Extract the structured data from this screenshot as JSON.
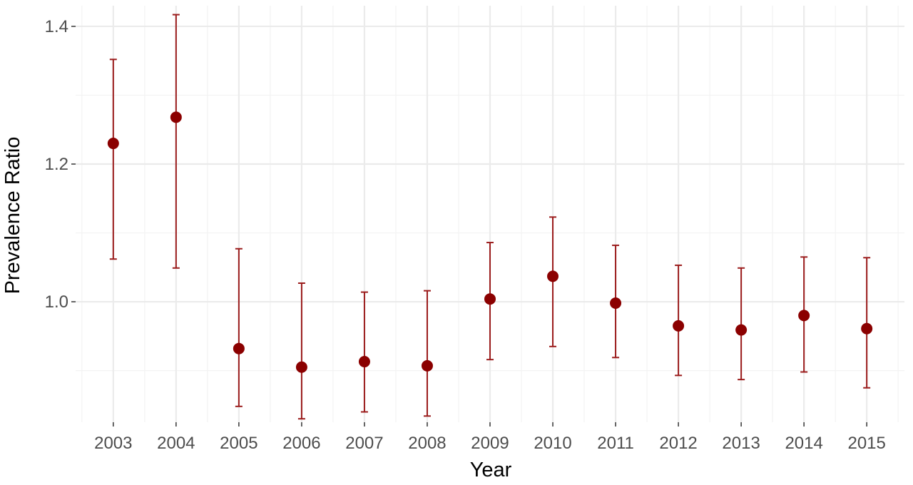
{
  "chart_data": {
    "type": "scatter",
    "title": "",
    "xlabel": "Year",
    "ylabel": "Prevalence Ratio",
    "categories": [
      "2003",
      "2004",
      "2005",
      "2006",
      "2007",
      "2008",
      "2009",
      "2010",
      "2011",
      "2012",
      "2013",
      "2014",
      "2015"
    ],
    "y_ticks": [
      1.0,
      1.2,
      1.4
    ],
    "y_tick_labels": [
      "1.0",
      "1.2",
      "1.4"
    ],
    "ylim": [
      0.825,
      1.43
    ],
    "grid": true,
    "legend": "none",
    "series": [
      {
        "estimate": [
          1.23,
          1.268,
          0.932,
          0.905,
          0.913,
          0.907,
          1.004,
          1.037,
          0.998,
          0.965,
          0.959,
          0.98,
          0.961
        ],
        "lower": [
          1.062,
          1.049,
          0.848,
          0.83,
          0.84,
          0.834,
          0.916,
          0.935,
          0.919,
          0.893,
          0.887,
          0.898,
          0.875
        ],
        "upper": [
          1.352,
          1.417,
          1.077,
          1.027,
          1.014,
          1.016,
          1.086,
          1.123,
          1.082,
          1.053,
          1.049,
          1.065,
          1.064
        ]
      }
    ],
    "colors": {
      "point": "#8b0000",
      "errorbar": "#9b1c1c",
      "grid_major": "#ebebeb",
      "grid_minor": "#f3f3f3",
      "tick_text": "#4d4d4d",
      "tick_mark": "#333333"
    }
  }
}
